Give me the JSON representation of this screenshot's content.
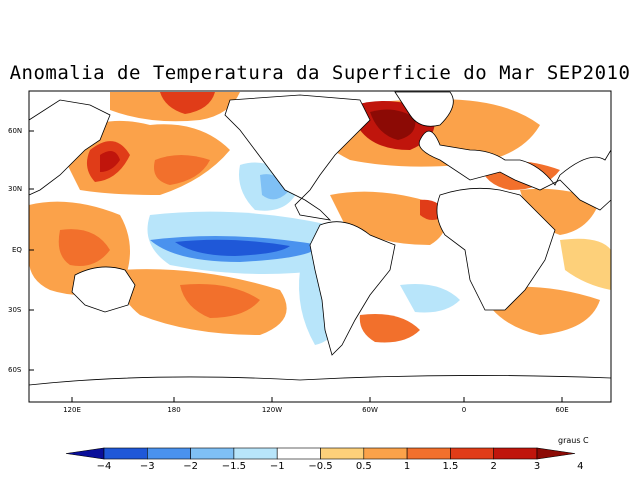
{
  "title": "Anomalia de Temperatura da Superficie do Mar SEP2010",
  "axes": {
    "lat_labels": [
      "60N",
      "30N",
      "EQ",
      "30S",
      "60S"
    ],
    "lon_labels": [
      "120E",
      "180",
      "120W",
      "60W",
      "0",
      "60E"
    ]
  },
  "colorbar": {
    "units": "graus C",
    "ticks": [
      "−4",
      "−3",
      "−2",
      "−1.5",
      "−1",
      "−0.5",
      "0.5",
      "1",
      "1.5",
      "2",
      "3",
      "4"
    ],
    "colors": [
      "#0a0f9a",
      "#1f58d8",
      "#4a92ee",
      "#7fc0f5",
      "#b8e5fa",
      "#ffffff",
      "#fdd07a",
      "#fba24a",
      "#f2702c",
      "#e03c18",
      "#c0150c",
      "#8c0a05"
    ]
  }
}
